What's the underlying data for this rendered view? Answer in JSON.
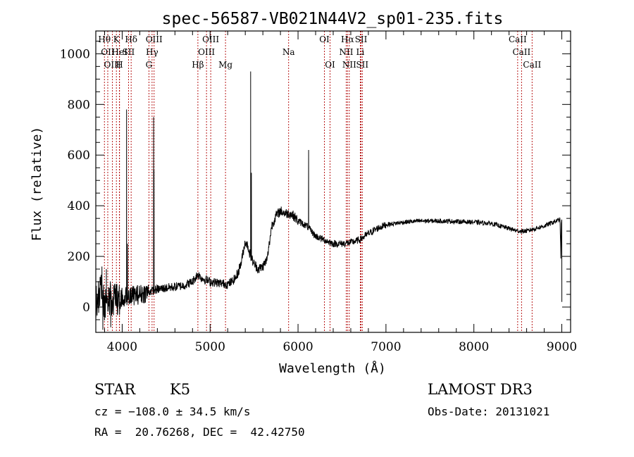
{
  "chart_data": {
    "type": "line",
    "title": "spec-56587-VB021N44V2_sp01-235.fits",
    "xlabel": "Wavelength (Å)",
    "ylabel": "Flux (relative)",
    "xlim": [
      3700,
      9100
    ],
    "ylim": [
      -100,
      1090
    ],
    "xticks": [
      {
        "value": 4000,
        "label": "4000"
      },
      {
        "value": 5000,
        "label": "5000"
      },
      {
        "value": 6000,
        "label": "6000"
      },
      {
        "value": 7000,
        "label": "7000"
      },
      {
        "value": 8000,
        "label": "8000"
      },
      {
        "value": 9000,
        "label": "9000"
      }
    ],
    "yticks": [
      {
        "value": 0,
        "label": "0"
      },
      {
        "value": 200,
        "label": "200"
      },
      {
        "value": 400,
        "label": "400"
      },
      {
        "value": 600,
        "label": "600"
      },
      {
        "value": 800,
        "label": "800"
      },
      {
        "value": 1000,
        "label": "1000"
      }
    ],
    "spectrum_anchors": [
      [
        3700,
        20
      ],
      [
        3760,
        60
      ],
      [
        3800,
        10
      ],
      [
        3850,
        40
      ],
      [
        3900,
        20
      ],
      [
        3950,
        30
      ],
      [
        4000,
        40
      ],
      [
        4100,
        45
      ],
      [
        4200,
        50
      ],
      [
        4300,
        60
      ],
      [
        4400,
        70
      ],
      [
        4500,
        75
      ],
      [
        4600,
        80
      ],
      [
        4700,
        85
      ],
      [
        4800,
        100
      ],
      [
        4860,
        130
      ],
      [
        4900,
        115
      ],
      [
        5000,
        100
      ],
      [
        5100,
        95
      ],
      [
        5200,
        90
      ],
      [
        5250,
        100
      ],
      [
        5300,
        120
      ],
      [
        5350,
        170
      ],
      [
        5400,
        260
      ],
      [
        5430,
        240
      ],
      [
        5460,
        200
      ],
      [
        5500,
        170
      ],
      [
        5550,
        150
      ],
      [
        5600,
        160
      ],
      [
        5650,
        190
      ],
      [
        5700,
        320
      ],
      [
        5750,
        360
      ],
      [
        5800,
        380
      ],
      [
        5850,
        370
      ],
      [
        5900,
        370
      ],
      [
        5950,
        360
      ],
      [
        6000,
        340
      ],
      [
        6050,
        330
      ],
      [
        6100,
        320
      ],
      [
        6150,
        300
      ],
      [
        6200,
        280
      ],
      [
        6300,
        265
      ],
      [
        6400,
        250
      ],
      [
        6500,
        250
      ],
      [
        6600,
        255
      ],
      [
        6700,
        265
      ],
      [
        6800,
        290
      ],
      [
        6900,
        310
      ],
      [
        7000,
        325
      ],
      [
        7200,
        335
      ],
      [
        7400,
        340
      ],
      [
        7600,
        340
      ],
      [
        7800,
        338
      ],
      [
        8000,
        335
      ],
      [
        8200,
        330
      ],
      [
        8400,
        310
      ],
      [
        8500,
        300
      ],
      [
        8600,
        300
      ],
      [
        8700,
        310
      ],
      [
        8800,
        320
      ],
      [
        8900,
        335
      ],
      [
        8980,
        345
      ],
      [
        9000,
        20
      ]
    ],
    "spectrum_spikes": [
      {
        "wavelength": 4050,
        "flux": 780
      },
      {
        "wavelength": 4061,
        "flux": 250
      },
      {
        "wavelength": 4358,
        "flux": 750
      },
      {
        "wavelength": 4362,
        "flux": 540
      },
      {
        "wavelength": 5461,
        "flux": 930
      },
      {
        "wavelength": 5470,
        "flux": 530
      },
      {
        "wavelength": 6120,
        "flux": 620
      },
      {
        "wavelength": 3770,
        "flux": 160
      },
      {
        "wavelength": 3820,
        "flux": 150
      },
      {
        "wavelength": 3780,
        "flux": -90
      },
      {
        "wavelength": 3870,
        "flux": -80
      }
    ],
    "line_markers": [
      {
        "wavelength": 3798,
        "row": 0,
        "label": "Hθ"
      },
      {
        "wavelength": 3836,
        "row": 1,
        "label": "OII"
      },
      {
        "wavelength": 3889,
        "row": 2,
        "label": "OIII"
      },
      {
        "wavelength": 3934,
        "row": 0,
        "label": "K"
      },
      {
        "wavelength": 3968,
        "row": 2,
        "label": "H"
      },
      {
        "wavelength": 3970,
        "row": 1,
        "label": "HeI"
      },
      {
        "wavelength": 4072,
        "row": 1,
        "label": "SII"
      },
      {
        "wavelength": 4102,
        "row": 0,
        "label": "Hδ"
      },
      {
        "wavelength": 4304,
        "row": 2,
        "label": "G"
      },
      {
        "wavelength": 4340,
        "row": 1,
        "label": "Hγ"
      },
      {
        "wavelength": 4363,
        "row": 0,
        "label": "OIII"
      },
      {
        "wavelength": 4861,
        "row": 2,
        "label": "Hβ"
      },
      {
        "wavelength": 4959,
        "row": 1,
        "label": "OIII"
      },
      {
        "wavelength": 5007,
        "row": 0,
        "label": "OIII"
      },
      {
        "wavelength": 5175,
        "row": 2,
        "label": "Mg"
      },
      {
        "wavelength": 5893,
        "row": 1,
        "label": "Na"
      },
      {
        "wavelength": 6300,
        "row": 0,
        "label": "OI"
      },
      {
        "wavelength": 6364,
        "row": 2,
        "label": "OI"
      },
      {
        "wavelength": 6548,
        "row": 1,
        "label": "NII"
      },
      {
        "wavelength": 6563,
        "row": 0,
        "label": "Hα"
      },
      {
        "wavelength": 6583,
        "row": 2,
        "label": "NII"
      },
      {
        "wavelength": 6708,
        "row": 1,
        "label": "Li"
      },
      {
        "wavelength": 6717,
        "row": 0,
        "label": "SII"
      },
      {
        "wavelength": 6731,
        "row": 2,
        "label": "SII"
      },
      {
        "wavelength": 8498,
        "row": 0,
        "label": "CaII"
      },
      {
        "wavelength": 8542,
        "row": 1,
        "label": "CaII"
      },
      {
        "wavelength": 8662,
        "row": 2,
        "label": "CaII"
      }
    ]
  },
  "info": {
    "object_class": "STAR",
    "subclass": "K5",
    "survey": "LAMOST DR3",
    "cz_line": "cz = −108.0 ± 34.5 km/s",
    "obs_date_line": "Obs-Date: 20131021",
    "radec_line": "RA =  20.76268, DEC =  42.42750"
  },
  "colors": {
    "spectrum": "#000000",
    "marker": "#b00000",
    "axis": "#000000",
    "background": "#ffffff"
  }
}
